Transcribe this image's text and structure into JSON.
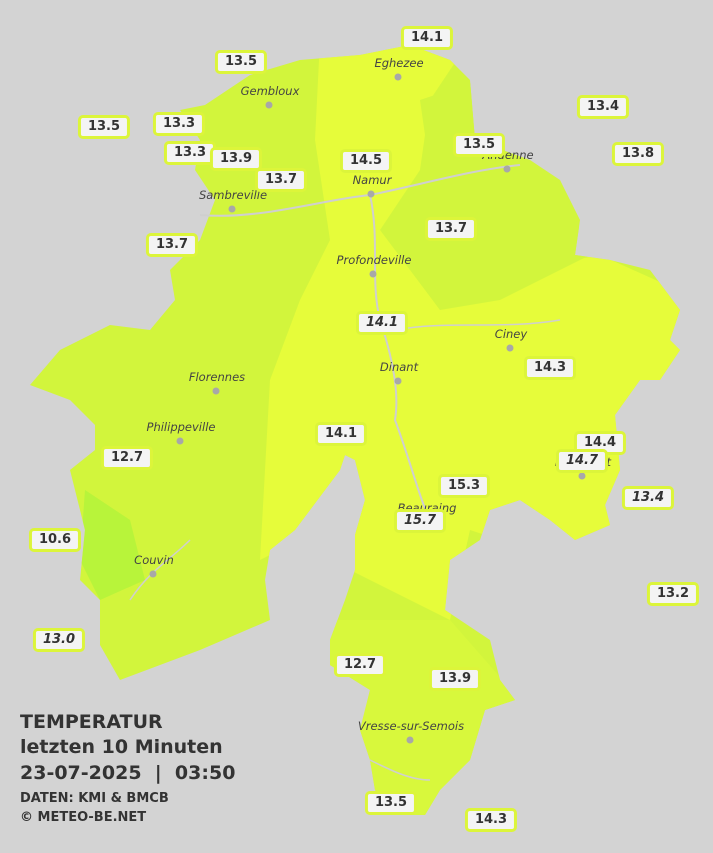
{
  "places": [
    "Eghezee",
    "Gembloux",
    "Andenne",
    "Namur",
    "Sambreville",
    "Profondeville",
    "Ciney",
    "Dinant",
    "Florennes",
    "Philippeville",
    "Couvin",
    "Vresse-sur-Semois",
    "Beauraing",
    "Rochefort"
  ],
  "stations": [
    {
      "text": "14.1",
      "style": "normal"
    },
    {
      "text": "13.5",
      "style": "normal"
    },
    {
      "text": "13.4",
      "style": "normal"
    },
    {
      "text": "13.5",
      "style": "normal"
    },
    {
      "text": "13.3",
      "style": "normal"
    },
    {
      "text": "13.3",
      "style": "normal"
    },
    {
      "text": "13.9",
      "style": "normal"
    },
    {
      "text": "13.7",
      "style": "normal"
    },
    {
      "text": "14.5",
      "style": "normal"
    },
    {
      "text": "13.5",
      "style": "normal"
    },
    {
      "text": "13.8",
      "style": "normal"
    },
    {
      "text": "13.7",
      "style": "normal"
    },
    {
      "text": "13.7",
      "style": "normal"
    },
    {
      "text": "14.1",
      "style": "italic"
    },
    {
      "text": "14.3",
      "style": "normal"
    },
    {
      "text": "14.1",
      "style": "normal"
    },
    {
      "text": "14.4",
      "style": "normal"
    },
    {
      "text": "14.7",
      "style": "italic"
    },
    {
      "text": "12.7",
      "style": "normal"
    },
    {
      "text": "15.3",
      "style": "normal"
    },
    {
      "text": "13.4",
      "style": "italic"
    },
    {
      "text": "15.7",
      "style": "italic"
    },
    {
      "text": "10.6",
      "style": "normal"
    },
    {
      "text": "13.2",
      "style": "normal"
    },
    {
      "text": "13.0",
      "style": "italic"
    },
    {
      "text": "12.7",
      "style": "normal"
    },
    {
      "text": "13.9",
      "style": "normal"
    },
    {
      "text": "13.5",
      "style": "normal"
    },
    {
      "text": "14.3",
      "style": "normal"
    }
  ],
  "legend": {
    "title": "TEMPERATUR",
    "period": "letzten 10 Minuten",
    "timestamp": "23-07-2025  |  03:50",
    "source": "DATEN: KMI & BMCB",
    "credit": "© METEO-BE.NET"
  }
}
